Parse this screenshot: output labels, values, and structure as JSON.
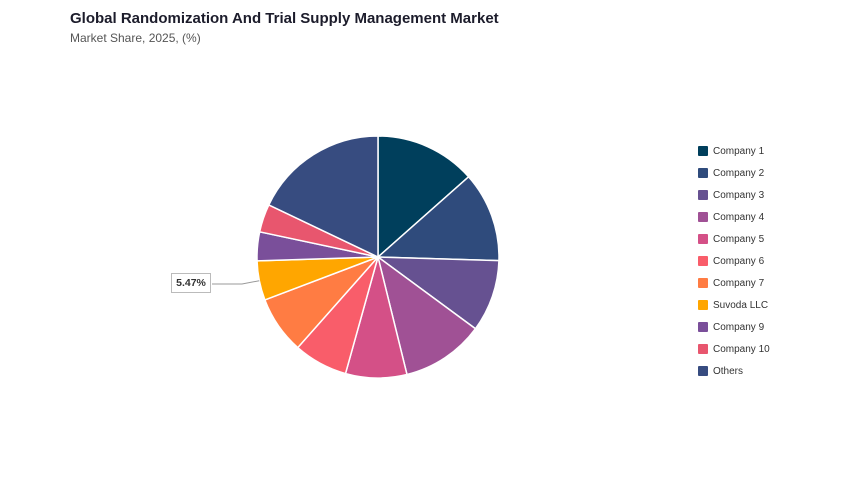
{
  "header": {
    "title": "Global Randomization And Trial Supply Management Market",
    "subtitle": "Market Share, 2025, (%)"
  },
  "chart_data": {
    "type": "pie",
    "title": "Global Randomization And Trial Supply Management Market",
    "subtitle": "Market Share, 2025, (%)",
    "legend_position": "right",
    "slices": [
      {
        "name": "Company 1",
        "value": 14.0,
        "color": "#003f5c"
      },
      {
        "name": "Company 2",
        "value": 12.5,
        "color": "#2f4b7c"
      },
      {
        "name": "Company 3",
        "value": 10.0,
        "color": "#665191"
      },
      {
        "name": "Company 4",
        "value": 11.5,
        "color": "#a05195"
      },
      {
        "name": "Company 5",
        "value": 8.5,
        "color": "#d45087"
      },
      {
        "name": "Company 6",
        "value": 7.5,
        "color": "#f95d6a"
      },
      {
        "name": "Company 7",
        "value": 8.0,
        "color": "#ff7c43"
      },
      {
        "name": "Suvoda LLC",
        "value": 5.47,
        "color": "#ffa600"
      },
      {
        "name": "Company 9",
        "value": 4.0,
        "color": "#7a4f9a"
      },
      {
        "name": "Company 10",
        "value": 3.9,
        "color": "#e8566e"
      },
      {
        "name": "Others",
        "value": 18.63,
        "color": "#374c80"
      }
    ],
    "callout": {
      "slice": "Suvoda LLC",
      "label": "5.47%"
    }
  }
}
